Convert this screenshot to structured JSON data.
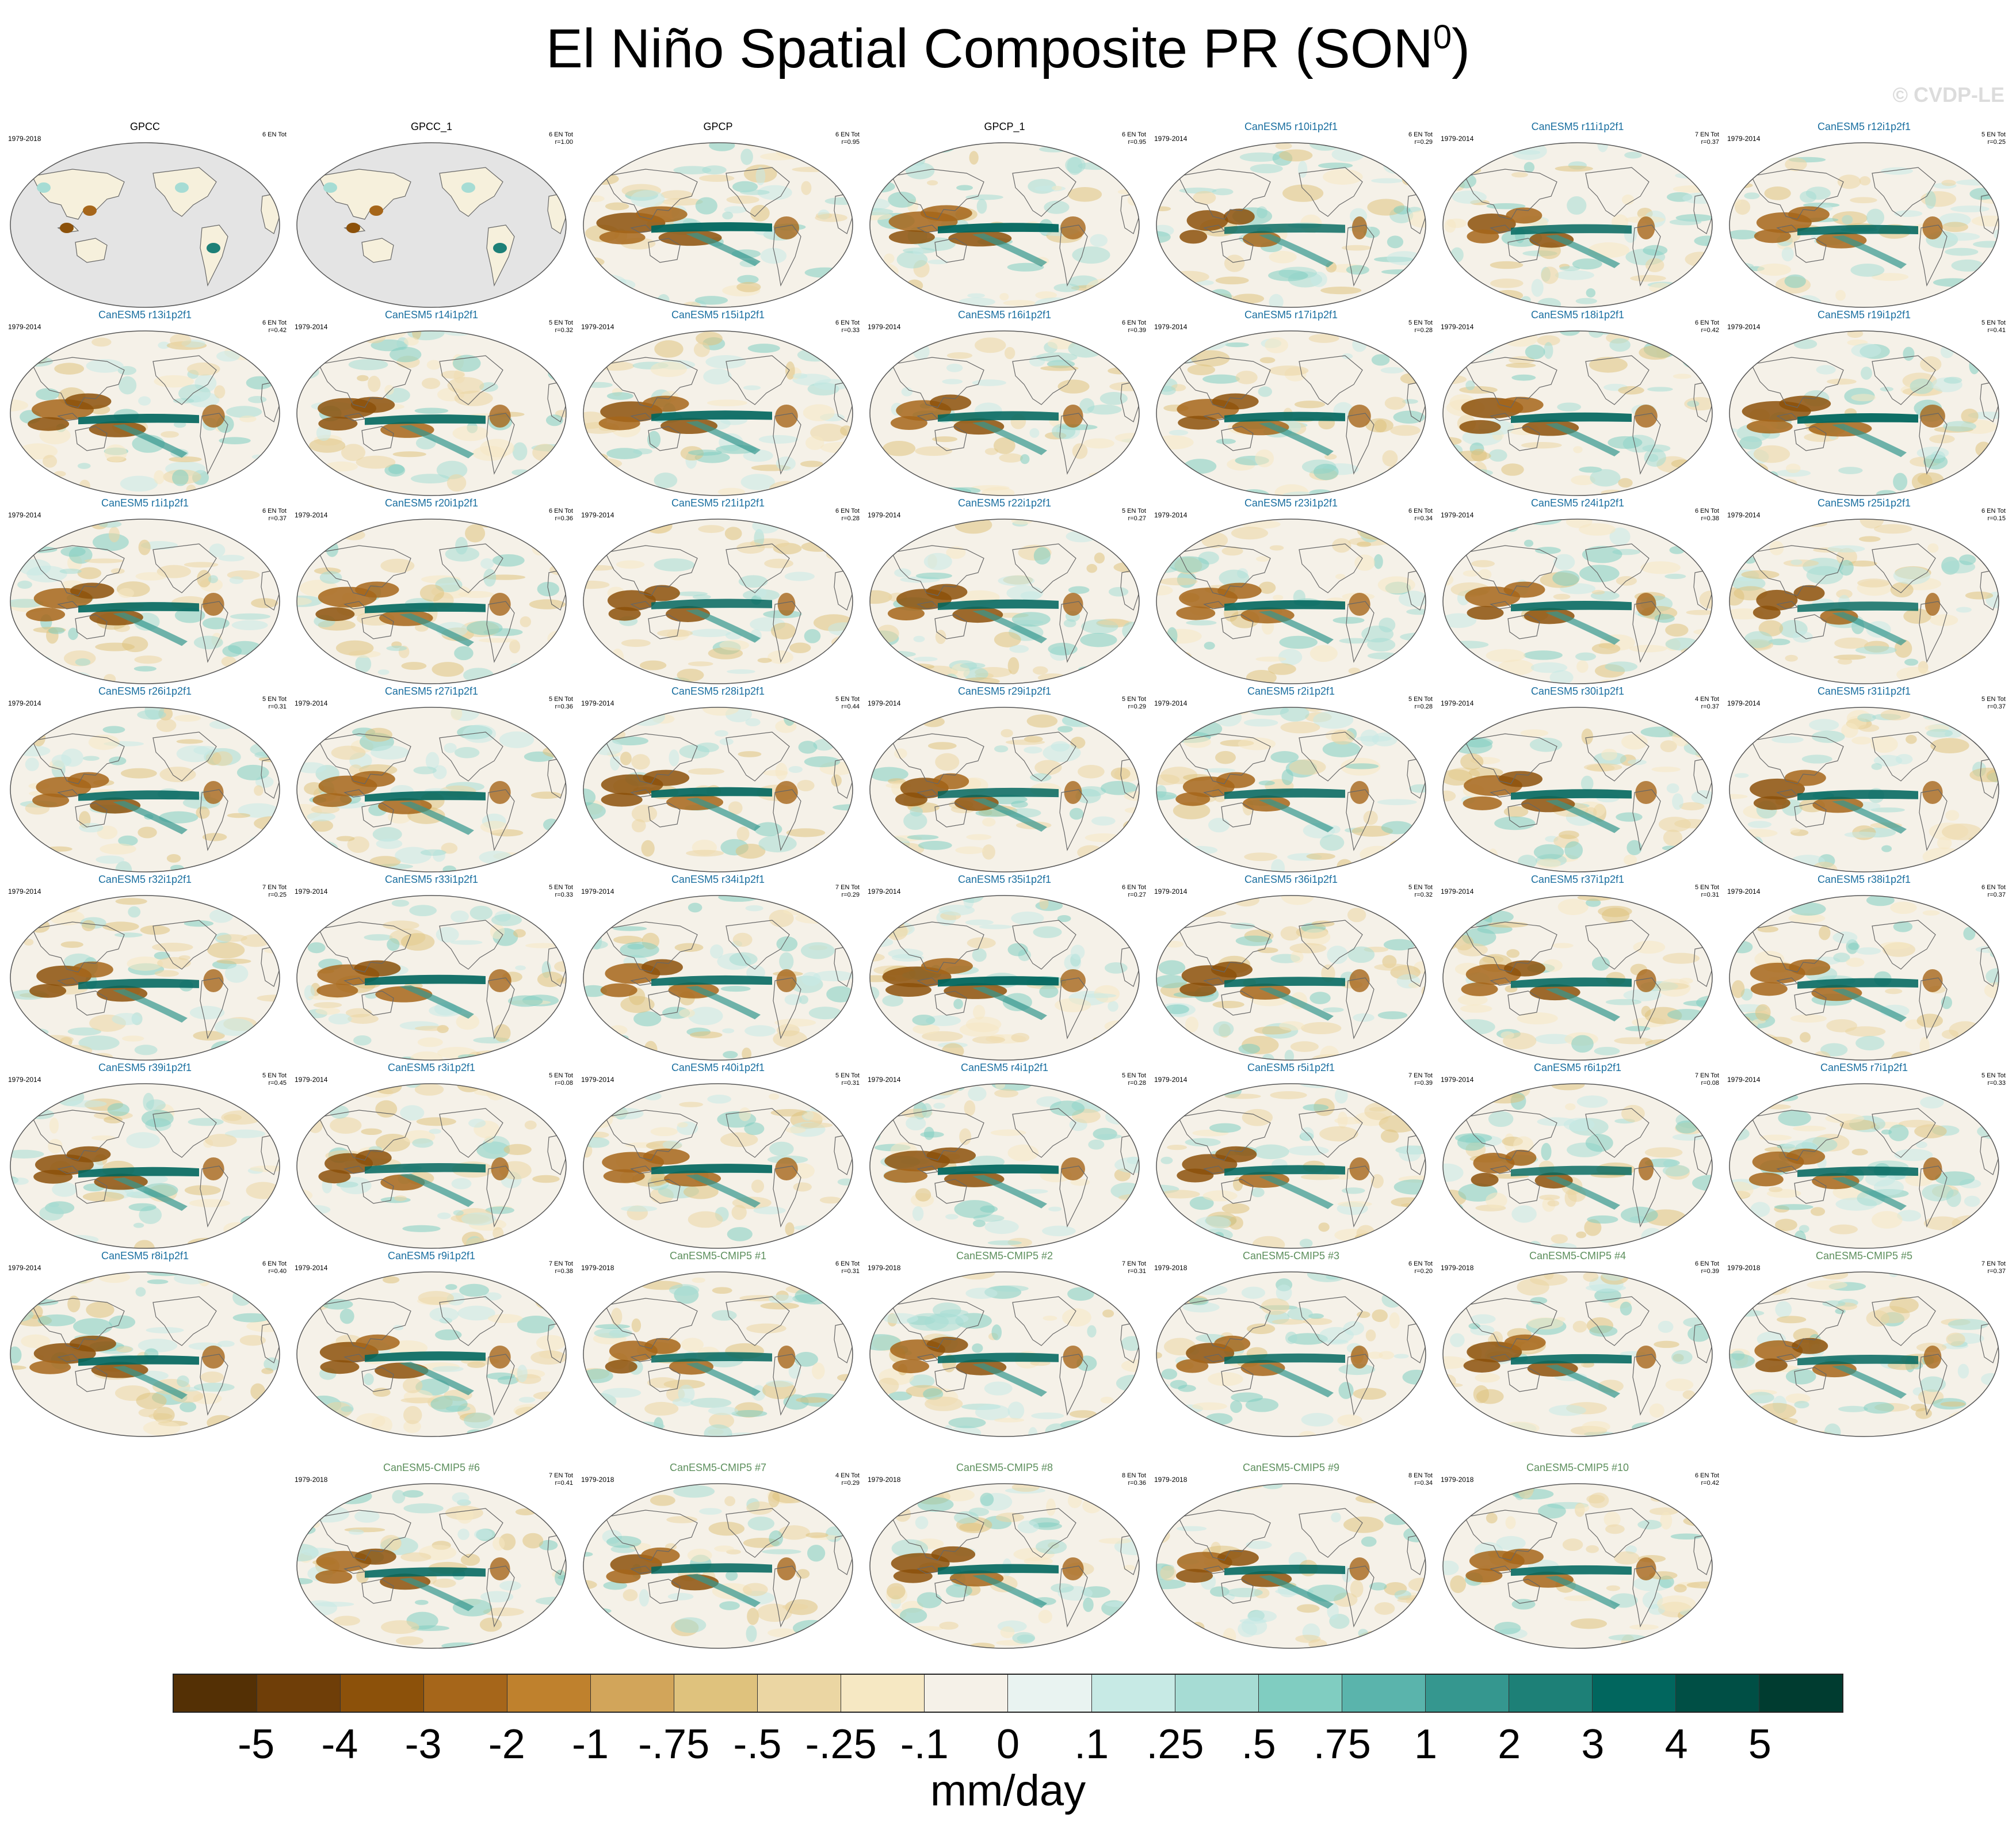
{
  "header": {
    "title": "El Niño Spatial Composite PR (SON",
    "title_sup": "0",
    "title_close": ")",
    "watermark": "© CVDP-LE"
  },
  "panels": [
    {
      "title": "GPCC",
      "period": "1979-2018",
      "events": "6 EN Tot",
      "r": "",
      "kind": "obs",
      "land_only": true,
      "intensity": 1.0
    },
    {
      "title": "GPCC_1",
      "period": "",
      "events": "6 EN Tot",
      "r": "r=1.00",
      "kind": "obs",
      "land_only": true,
      "intensity": 1.0
    },
    {
      "title": "GPCP",
      "period": "",
      "events": "6 EN Tot",
      "r": "r=0.95",
      "kind": "obs",
      "land_only": false,
      "intensity": 1.0
    },
    {
      "title": "GPCP_1",
      "period": "",
      "events": "6 EN Tot",
      "r": "r=0.95",
      "kind": "obs",
      "land_only": false,
      "intensity": 1.0
    },
    {
      "title": "CanESM5 r10i1p2f1",
      "period": "1979-2014",
      "events": "6 EN Tot",
      "r": "r=0.29",
      "kind": "model",
      "land_only": false,
      "intensity": 0.6
    },
    {
      "title": "CanESM5 r11i1p2f1",
      "period": "1979-2014",
      "events": "7 EN Tot",
      "r": "r=0.37",
      "kind": "model",
      "land_only": false,
      "intensity": 0.7
    },
    {
      "title": "CanESM5 r12i1p2f1",
      "period": "1979-2014",
      "events": "5 EN Tot",
      "r": "r=0.25",
      "kind": "model",
      "land_only": false,
      "intensity": 0.8
    },
    {
      "title": "CanESM5 r13i1p2f1",
      "period": "1979-2014",
      "events": "6 EN Tot",
      "r": "r=0.42",
      "kind": "model",
      "land_only": false,
      "intensity": 0.9
    },
    {
      "title": "CanESM5 r14i1p2f1",
      "period": "1979-2014",
      "events": "5 EN Tot",
      "r": "r=0.32",
      "kind": "model",
      "land_only": false,
      "intensity": 0.85
    },
    {
      "title": "CanESM5 r15i1p2f1",
      "period": "1979-2014",
      "events": "6 EN Tot",
      "r": "r=0.33",
      "kind": "model",
      "land_only": false,
      "intensity": 0.9
    },
    {
      "title": "CanESM5 r16i1p2f1",
      "period": "1979-2014",
      "events": "6 EN Tot",
      "r": "r=0.39",
      "kind": "model",
      "land_only": false,
      "intensity": 0.8
    },
    {
      "title": "CanESM5 r17i1p2f1",
      "period": "1979-2014",
      "events": "5 EN Tot",
      "r": "r=0.28",
      "kind": "model",
      "land_only": false,
      "intensity": 0.9
    },
    {
      "title": "CanESM5 r18i1p2f1",
      "period": "1979-2014",
      "events": "6 EN Tot",
      "r": "r=0.42",
      "kind": "model",
      "land_only": false,
      "intensity": 0.9
    },
    {
      "title": "CanESM5 r19i1p2f1",
      "period": "1979-2014",
      "events": "5 EN Tot",
      "r": "r=0.41",
      "kind": "model",
      "land_only": false,
      "intensity": 1.0
    },
    {
      "title": "CanESM5 r1i1p2f1",
      "period": "1979-2014",
      "events": "6 EN Tot",
      "r": "r=0.37",
      "kind": "model",
      "land_only": false,
      "intensity": 0.85
    },
    {
      "title": "CanESM5 r20i1p2f1",
      "period": "1979-2014",
      "events": "6 EN Tot",
      "r": "r=0.36",
      "kind": "model",
      "land_only": false,
      "intensity": 0.85
    },
    {
      "title": "CanESM5 r21i1p2f1",
      "period": "1979-2014",
      "events": "6 EN Tot",
      "r": "r=0.28",
      "kind": "model",
      "land_only": false,
      "intensity": 0.7
    },
    {
      "title": "CanESM5 r22i1p2f1",
      "period": "1979-2014",
      "events": "5 EN Tot",
      "r": "r=0.27",
      "kind": "model",
      "land_only": false,
      "intensity": 0.8
    },
    {
      "title": "CanESM5 r23i1p2f1",
      "period": "1979-2014",
      "events": "6 EN Tot",
      "r": "r=0.34",
      "kind": "model",
      "land_only": false,
      "intensity": 0.85
    },
    {
      "title": "CanESM5 r24i1p2f1",
      "period": "1979-2014",
      "events": "6 EN Tot",
      "r": "r=0.38",
      "kind": "model",
      "land_only": false,
      "intensity": 0.8
    },
    {
      "title": "CanESM5 r25i1p2f1",
      "period": "1979-2014",
      "events": "6 EN Tot",
      "r": "r=0.15",
      "kind": "model",
      "land_only": false,
      "intensity": 0.6
    },
    {
      "title": "CanESM5 r26i1p2f1",
      "period": "1979-2014",
      "events": "5 EN Tot",
      "r": "r=0.31",
      "kind": "model",
      "land_only": false,
      "intensity": 0.8
    },
    {
      "title": "CanESM5 r27i1p2f1",
      "period": "1979-2014",
      "events": "5 EN Tot",
      "r": "r=0.36",
      "kind": "model",
      "land_only": false,
      "intensity": 0.85
    },
    {
      "title": "CanESM5 r28i1p2f1",
      "period": "1979-2014",
      "events": "5 EN Tot",
      "r": "r=0.44",
      "kind": "model",
      "land_only": false,
      "intensity": 0.9
    },
    {
      "title": "CanESM5 r29i1p2f1",
      "period": "1979-2014",
      "events": "5 EN Tot",
      "r": "r=0.29",
      "kind": "model",
      "land_only": false,
      "intensity": 0.7
    },
    {
      "title": "CanESM5 r2i1p2f1",
      "period": "1979-2014",
      "events": "5 EN Tot",
      "r": "r=0.28",
      "kind": "model",
      "land_only": false,
      "intensity": 0.75
    },
    {
      "title": "CanESM5 r30i1p2f1",
      "period": "1979-2014",
      "events": "4 EN Tot",
      "r": "r=0.37",
      "kind": "model",
      "land_only": false,
      "intensity": 0.85
    },
    {
      "title": "CanESM5 r31i1p2f1",
      "period": "1979-2014",
      "events": "5 EN Tot",
      "r": "r=0.37",
      "kind": "model",
      "land_only": false,
      "intensity": 0.8
    },
    {
      "title": "CanESM5 r32i1p2f1",
      "period": "1979-2014",
      "events": "7 EN Tot",
      "r": "r=0.25",
      "kind": "model",
      "land_only": false,
      "intensity": 0.8
    },
    {
      "title": "CanESM5 r33i1p2f1",
      "period": "1979-2014",
      "events": "5 EN Tot",
      "r": "r=0.33",
      "kind": "model",
      "land_only": false,
      "intensity": 0.9
    },
    {
      "title": "CanESM5 r34i1p2f1",
      "period": "1979-2014",
      "events": "7 EN Tot",
      "r": "r=0.29",
      "kind": "model",
      "land_only": false,
      "intensity": 0.8
    },
    {
      "title": "CanESM5 r35i1p2f1",
      "period": "1979-2014",
      "events": "6 EN Tot",
      "r": "r=0.27",
      "kind": "model",
      "land_only": false,
      "intensity": 1.0
    },
    {
      "title": "CanESM5 r36i1p2f1",
      "period": "1979-2014",
      "events": "5 EN Tot",
      "r": "r=0.32",
      "kind": "model",
      "land_only": false,
      "intensity": 0.8
    },
    {
      "title": "CanESM5 r37i1p2f1",
      "period": "1979-2014",
      "events": "5 EN Tot",
      "r": "r=0.31",
      "kind": "model",
      "land_only": false,
      "intensity": 0.8
    },
    {
      "title": "CanESM5 r38i1p2f1",
      "period": "1979-2014",
      "events": "6 EN Tot",
      "r": "r=0.37",
      "kind": "model",
      "land_only": false,
      "intensity": 0.8
    },
    {
      "title": "CanESM5 r39i1p2f1",
      "period": "1979-2014",
      "events": "5 EN Tot",
      "r": "r=0.45",
      "kind": "model",
      "land_only": false,
      "intensity": 0.85
    },
    {
      "title": "CanESM5 r3i1p2f1",
      "period": "1979-2014",
      "events": "5 EN Tot",
      "r": "r=0.08",
      "kind": "model",
      "land_only": false,
      "intensity": 0.7
    },
    {
      "title": "CanESM5 r40i1p2f1",
      "period": "1979-2014",
      "events": "5 EN Tot",
      "r": "r=0.31",
      "kind": "model",
      "land_only": false,
      "intensity": 0.9
    },
    {
      "title": "CanESM5 r4i1p2f1",
      "period": "1979-2014",
      "events": "5 EN Tot",
      "r": "r=0.28",
      "kind": "model",
      "land_only": false,
      "intensity": 0.95
    },
    {
      "title": "CanESM5 r5i1p2f1",
      "period": "1979-2014",
      "events": "7 EN Tot",
      "r": "r=0.39",
      "kind": "model",
      "land_only": false,
      "intensity": 0.8
    },
    {
      "title": "CanESM5 r6i1p2f1",
      "period": "1979-2014",
      "events": "7 EN Tot",
      "r": "r=0.08",
      "kind": "model",
      "land_only": false,
      "intensity": 0.6
    },
    {
      "title": "CanESM5 r7i1p2f1",
      "period": "1979-2014",
      "events": "5 EN Tot",
      "r": "r=0.33",
      "kind": "model",
      "land_only": false,
      "intensity": 0.75
    },
    {
      "title": "CanESM5 r8i1p2f1",
      "period": "1979-2014",
      "events": "6 EN Tot",
      "r": "r=0.40",
      "kind": "model",
      "land_only": false,
      "intensity": 0.9
    },
    {
      "title": "CanESM5 r9i1p2f1",
      "period": "1979-2014",
      "events": "7 EN Tot",
      "r": "r=0.38",
      "kind": "model",
      "land_only": false,
      "intensity": 0.85
    },
    {
      "title": "CanESM5-CMIP5 #1",
      "period": "1979-2018",
      "events": "6 EN Tot",
      "r": "r=0.31",
      "kind": "cmip5",
      "land_only": false,
      "intensity": 0.7
    },
    {
      "title": "CanESM5-CMIP5 #2",
      "period": "1979-2018",
      "events": "7 EN Tot",
      "r": "r=0.31",
      "kind": "cmip5",
      "land_only": false,
      "intensity": 0.8
    },
    {
      "title": "CanESM5-CMIP5 #3",
      "period": "1979-2018",
      "events": "6 EN Tot",
      "r": "r=0.20",
      "kind": "cmip5",
      "land_only": false,
      "intensity": 0.7
    },
    {
      "title": "CanESM5-CMIP5 #4",
      "period": "1979-2018",
      "events": "6 EN Tot",
      "r": "r=0.39",
      "kind": "cmip5",
      "land_only": false,
      "intensity": 0.8
    },
    {
      "title": "CanESM5-CMIP5 #5",
      "period": "1979-2018",
      "events": "7 EN Tot",
      "r": "r=0.37",
      "kind": "cmip5",
      "land_only": false,
      "intensity": 0.7
    },
    {
      "title": "CanESM5-CMIP5 #6",
      "period": "1979-2018",
      "events": "7 EN Tot",
      "r": "r=0.41",
      "kind": "cmip5",
      "land_only": false,
      "intensity": 0.8
    },
    {
      "title": "CanESM5-CMIP5 #7",
      "period": "1979-2018",
      "events": "4 EN Tot",
      "r": "r=0.29",
      "kind": "cmip5",
      "land_only": false,
      "intensity": 0.75
    },
    {
      "title": "CanESM5-CMIP5 #8",
      "period": "1979-2018",
      "events": "8 EN Tot",
      "r": "r=0.36",
      "kind": "cmip5",
      "land_only": false,
      "intensity": 0.85
    },
    {
      "title": "CanESM5-CMIP5 #9",
      "period": "1979-2018",
      "events": "8 EN Tot",
      "r": "r=0.34",
      "kind": "cmip5",
      "land_only": false,
      "intensity": 0.8
    },
    {
      "title": "CanESM5-CMIP5 #10",
      "period": "1979-2018",
      "events": "6 EN Tot",
      "r": "r=0.42",
      "kind": "cmip5",
      "land_only": false,
      "intensity": 0.8
    }
  ],
  "colorbar": {
    "colors": [
      "#543005",
      "#6f3e08",
      "#8c510a",
      "#a6661a",
      "#bf812d",
      "#d2a55a",
      "#dfc27d",
      "#ebd6a3",
      "#f6e8c3",
      "#f5f1e8",
      "#e9f3f1",
      "#c7eae5",
      "#a6dcd4",
      "#80cdc1",
      "#5ab4ac",
      "#35978f",
      "#1d8077",
      "#01665e",
      "#004f45",
      "#003c30"
    ],
    "labels": [
      "-5",
      "-4",
      "-3",
      "-2",
      "-1",
      "-.75",
      "-.5",
      "-.25",
      "-.1",
      "0",
      ".1",
      ".25",
      ".5",
      ".75",
      "1",
      "2",
      "3",
      "4",
      "5"
    ],
    "units": "mm/day"
  },
  "style": {
    "obs_title_color": "#000000",
    "model_title_color": "#1a6fa0",
    "cmip5_title_color": "#5d8f5d",
    "ocean_gray": "#e4e4e4",
    "coast_color": "#666666"
  }
}
